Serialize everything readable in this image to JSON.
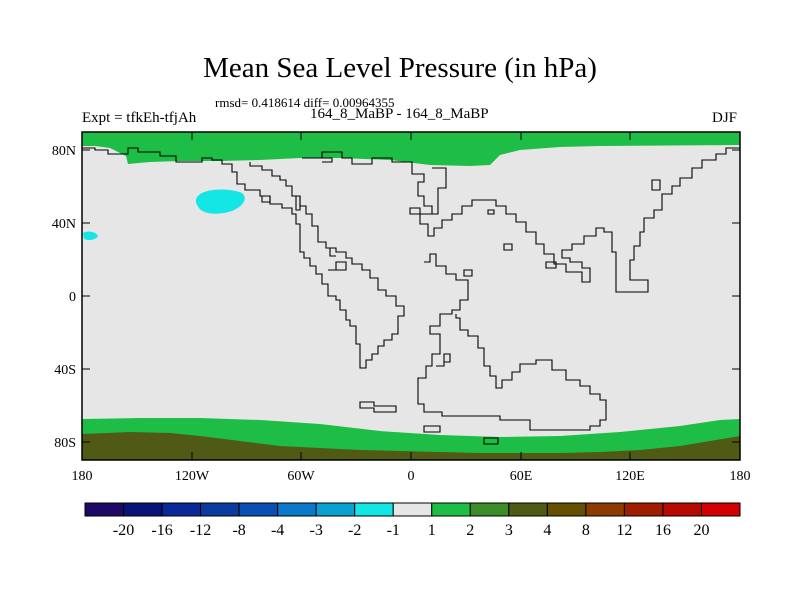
{
  "header": {
    "title": "Mean Sea Level Pressure (in hPa)",
    "stats": "rmsd= 0.418614 diff= 0.00964355",
    "expt": "Expt = tfkEh-tfjAh",
    "center_label": "164_8_MaBP - 164_8_MaBP",
    "season": "DJF"
  },
  "map": {
    "y_ticks": [
      "80N",
      "40N",
      "0",
      "40S",
      "80S"
    ],
    "x_ticks": [
      "180",
      "120W",
      "60W",
      "0",
      "60E",
      "120E",
      "180"
    ],
    "background_color": "#e6e6e6",
    "coastline_color": "#000000"
  },
  "colorbar": {
    "labels": [
      "-20",
      "-16",
      "-12",
      "-8",
      "-4",
      "-3",
      "-2",
      "-1",
      "1",
      "2",
      "3",
      "4",
      "8",
      "12",
      "16",
      "20"
    ],
    "colors": [
      "#1e0a64",
      "#0a1478",
      "#0a2896",
      "#0a3ca0",
      "#0a50b4",
      "#0a78c8",
      "#0aa0d2",
      "#14e6e6",
      "#e6e6e6",
      "#1ebe46",
      "#3c8c28",
      "#505a14",
      "#645000",
      "#8c3c00",
      "#a01e00",
      "#b40a00",
      "#d20000"
    ]
  }
}
